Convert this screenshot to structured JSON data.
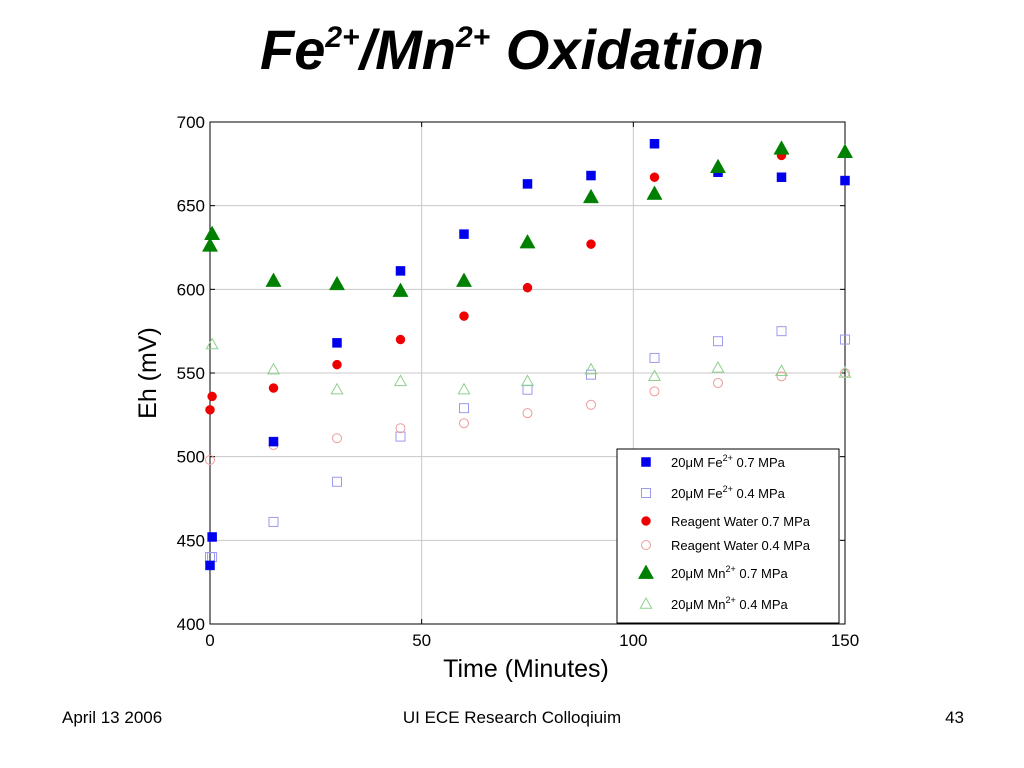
{
  "slide": {
    "title_parts": [
      {
        "text": "Fe",
        "sup": false
      },
      {
        "text": "2+",
        "sup": true
      },
      {
        "text": "/Mn",
        "sup": false
      },
      {
        "text": "2+",
        "sup": true
      },
      {
        "text": " Oxidation",
        "sup": false
      }
    ],
    "footer": {
      "date": "April 13 2006",
      "event": "UI ECE Research Colloqiuim",
      "page": "43"
    }
  },
  "chart_data": {
    "type": "scatter",
    "xlabel": "Time (Minutes)",
    "ylabel": "Eh (mV)",
    "xlim": [
      0,
      150
    ],
    "ylim": [
      400,
      700
    ],
    "xticks": [
      0,
      50,
      100,
      150
    ],
    "yticks": [
      400,
      450,
      500,
      550,
      600,
      650,
      700
    ],
    "grid": true,
    "legend_position": "bottom-right",
    "series": [
      {
        "name_parts": [
          {
            "text": "20"
          },
          {
            "text": "μ",
            "greek": true
          },
          {
            "text": "M Fe"
          },
          {
            "text": "2+",
            "sup": true
          },
          {
            "text": " 0.7 MPa"
          }
        ],
        "marker": "square",
        "filled": true,
        "color": "#0000ee",
        "x": [
          0,
          0.5,
          15,
          30,
          45,
          60,
          75,
          90,
          105,
          120,
          135,
          150
        ],
        "y": [
          435,
          452,
          509,
          568,
          611,
          633,
          663,
          668,
          687,
          670,
          667,
          665
        ]
      },
      {
        "name_parts": [
          {
            "text": "20"
          },
          {
            "text": "μ",
            "greek": true
          },
          {
            "text": "M Fe"
          },
          {
            "text": "2+",
            "sup": true
          },
          {
            "text": " 0.4 MPa"
          }
        ],
        "marker": "square",
        "filled": false,
        "color": "#9a9aee",
        "x": [
          0,
          0.5,
          15,
          30,
          45,
          60,
          75,
          90,
          105,
          120,
          135,
          150
        ],
        "y": [
          440,
          440,
          461,
          485,
          512,
          529,
          540,
          549,
          559,
          569,
          575,
          570
        ]
      },
      {
        "name_parts": [
          {
            "text": "Reagent Water 0.7 MPa"
          }
        ],
        "marker": "circle",
        "filled": true,
        "color": "#ee0000",
        "x": [
          0,
          0.5,
          15,
          30,
          45,
          60,
          75,
          90,
          105,
          135
        ],
        "y": [
          528,
          536,
          541,
          555,
          570,
          584,
          601,
          627,
          667,
          680
        ]
      },
      {
        "name_parts": [
          {
            "text": "Reagent Water 0.4 MPa"
          }
        ],
        "marker": "circle",
        "filled": false,
        "color": "#ee9a9a",
        "x": [
          0,
          15,
          30,
          45,
          60,
          75,
          90,
          105,
          120,
          135,
          150
        ],
        "y": [
          498,
          507,
          511,
          517,
          520,
          526,
          531,
          539,
          544,
          548,
          550
        ]
      },
      {
        "name_parts": [
          {
            "text": "20"
          },
          {
            "text": "μ",
            "greek": true
          },
          {
            "text": "M Mn"
          },
          {
            "text": "2+",
            "sup": true
          },
          {
            "text": " 0.7 MPa"
          }
        ],
        "marker": "triangle",
        "filled": true,
        "color": "#008000",
        "x": [
          0,
          0.5,
          15,
          30,
          45,
          60,
          75,
          90,
          105,
          120,
          135,
          150
        ],
        "y": [
          626,
          633,
          605,
          603,
          599,
          605,
          628,
          655,
          657,
          673,
          684,
          682
        ]
      },
      {
        "name_parts": [
          {
            "text": "20"
          },
          {
            "text": "μ",
            "greek": true
          },
          {
            "text": "M Mn"
          },
          {
            "text": "2+",
            "sup": true
          },
          {
            "text": " 0.4 MPa"
          }
        ],
        "marker": "triangle",
        "filled": false,
        "color": "#8ed08e",
        "x": [
          0.5,
          15,
          30,
          45,
          60,
          75,
          90,
          105,
          120,
          135,
          150
        ],
        "y": [
          567,
          552,
          540,
          545,
          540,
          545,
          552,
          548,
          553,
          551,
          550
        ]
      }
    ]
  }
}
